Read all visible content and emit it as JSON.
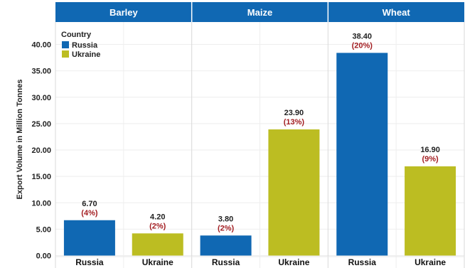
{
  "chart_data": {
    "type": "bar",
    "facet_label": "",
    "facets": [
      "Barley",
      "Maize",
      "Wheat"
    ],
    "categories": [
      "Russia",
      "Ukraine"
    ],
    "ylabel": "Export Volume in Million Tonnes",
    "ylim": [
      0,
      43
    ],
    "yticks": [
      "0.00",
      "5.00",
      "10.00",
      "15.00",
      "20.00",
      "25.00",
      "30.00",
      "35.00",
      "40.00"
    ],
    "grid": true,
    "legend": {
      "title": "Country",
      "placement": "top-left",
      "items": [
        {
          "name": "Russia",
          "color": "#1068b3"
        },
        {
          "name": "Ukraine",
          "color": "#bcbd22"
        }
      ]
    },
    "colors": {
      "header": "#1068b3",
      "percent_text": "#a31e22"
    },
    "values": [
      {
        "facet": "Barley",
        "country": "Russia",
        "value": 6.7,
        "label": "6.70",
        "pct": "(4%)"
      },
      {
        "facet": "Barley",
        "country": "Ukraine",
        "value": 4.2,
        "label": "4.20",
        "pct": "(2%)"
      },
      {
        "facet": "Maize",
        "country": "Russia",
        "value": 3.8,
        "label": "3.80",
        "pct": "(2%)"
      },
      {
        "facet": "Maize",
        "country": "Ukraine",
        "value": 23.9,
        "label": "23.90",
        "pct": "(13%)"
      },
      {
        "facet": "Wheat",
        "country": "Russia",
        "value": 38.4,
        "label": "38.40",
        "pct": "(20%)"
      },
      {
        "facet": "Wheat",
        "country": "Ukraine",
        "value": 16.9,
        "label": "16.90",
        "pct": "(9%)"
      }
    ]
  }
}
